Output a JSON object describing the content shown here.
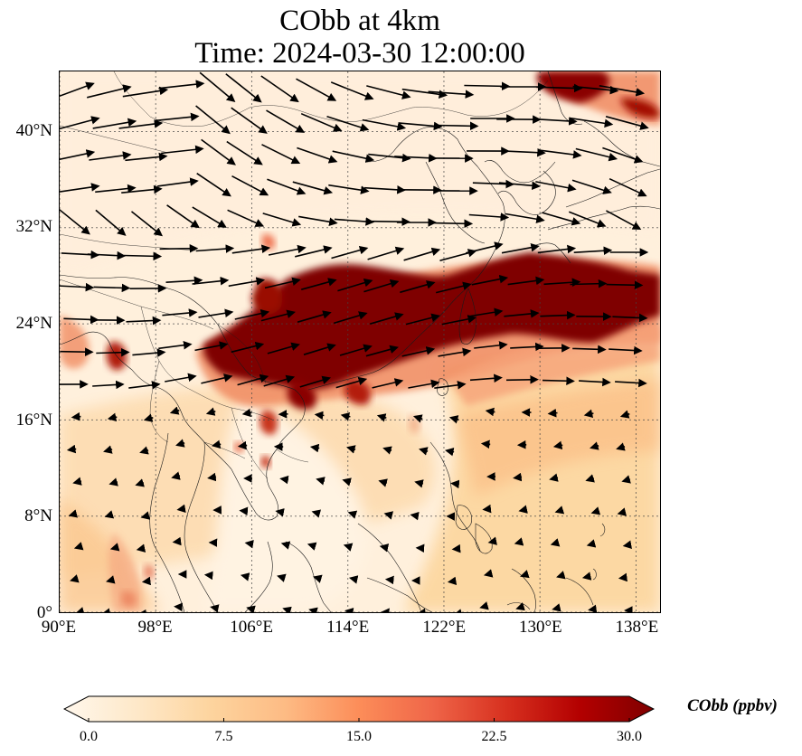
{
  "title": {
    "line1": "CObb at 4km",
    "line2": "Time: 2024-03-30 12:00:00"
  },
  "map": {
    "lon_range": [
      90,
      140
    ],
    "lat_range": [
      0,
      45
    ],
    "lon_ticks": [
      "90°E",
      "98°E",
      "106°E",
      "114°E",
      "122°E",
      "130°E",
      "138°E"
    ],
    "lon_values": [
      90,
      98,
      106,
      114,
      122,
      130,
      138
    ],
    "lat_ticks": [
      "0°",
      "8°N",
      "16°N",
      "24°N",
      "32°N",
      "40°N"
    ],
    "lat_values": [
      0,
      8,
      16,
      24,
      32,
      40
    ],
    "gridlines": true,
    "field": "COBB concentration at 4 km with wind vectors",
    "colors": {
      "high": "#7f0000",
      "mid": "#ef6548",
      "low": "#fdd49e",
      "background": "#fff0dc",
      "arrow": "#000000"
    }
  },
  "colorbar": {
    "label": "CObb (ppbv)",
    "ticks": [
      "0.0",
      "7.5",
      "15.0",
      "22.5",
      "30.0"
    ],
    "tick_values": [
      0,
      7.5,
      15,
      22.5,
      30
    ],
    "range": [
      0,
      30
    ],
    "extend": "both",
    "colormap": [
      "#fff7ec",
      "#fee8c8",
      "#fdd49e",
      "#fdbb84",
      "#fc8d59",
      "#ef6548",
      "#d7301f",
      "#b30000",
      "#7f0000"
    ]
  }
}
